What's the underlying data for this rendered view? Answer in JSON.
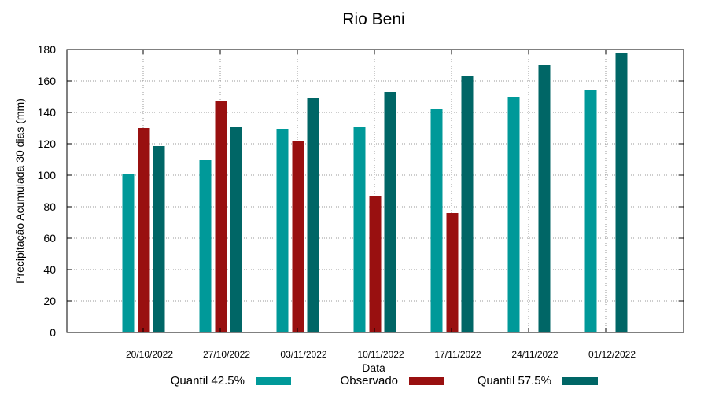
{
  "chart_data": {
    "type": "bar",
    "title": "Rio Beni",
    "xlabel": "Data",
    "ylabel": "Precipitação Acumulada 30 dias (mm)",
    "ylim": [
      0,
      180
    ],
    "yticks": [
      0,
      20,
      40,
      60,
      80,
      100,
      120,
      140,
      160,
      180
    ],
    "grid": true,
    "legend_position": "bottom",
    "categories": [
      "20/10/2022",
      "27/10/2022",
      "03/11/2022",
      "10/11/2022",
      "17/11/2022",
      "24/11/2022",
      "01/12/2022"
    ],
    "series": [
      {
        "name": "Quantil 42.5%",
        "color": "#009999",
        "values": [
          101,
          110,
          129.5,
          131,
          142,
          150,
          154
        ]
      },
      {
        "name": "Observado",
        "color": "#991010",
        "values": [
          130,
          147,
          122,
          87,
          76,
          null,
          null
        ]
      },
      {
        "name": "Quantil 57.5%",
        "color": "#006666",
        "values": [
          118.5,
          131,
          149,
          153,
          163,
          170,
          178
        ]
      }
    ]
  }
}
